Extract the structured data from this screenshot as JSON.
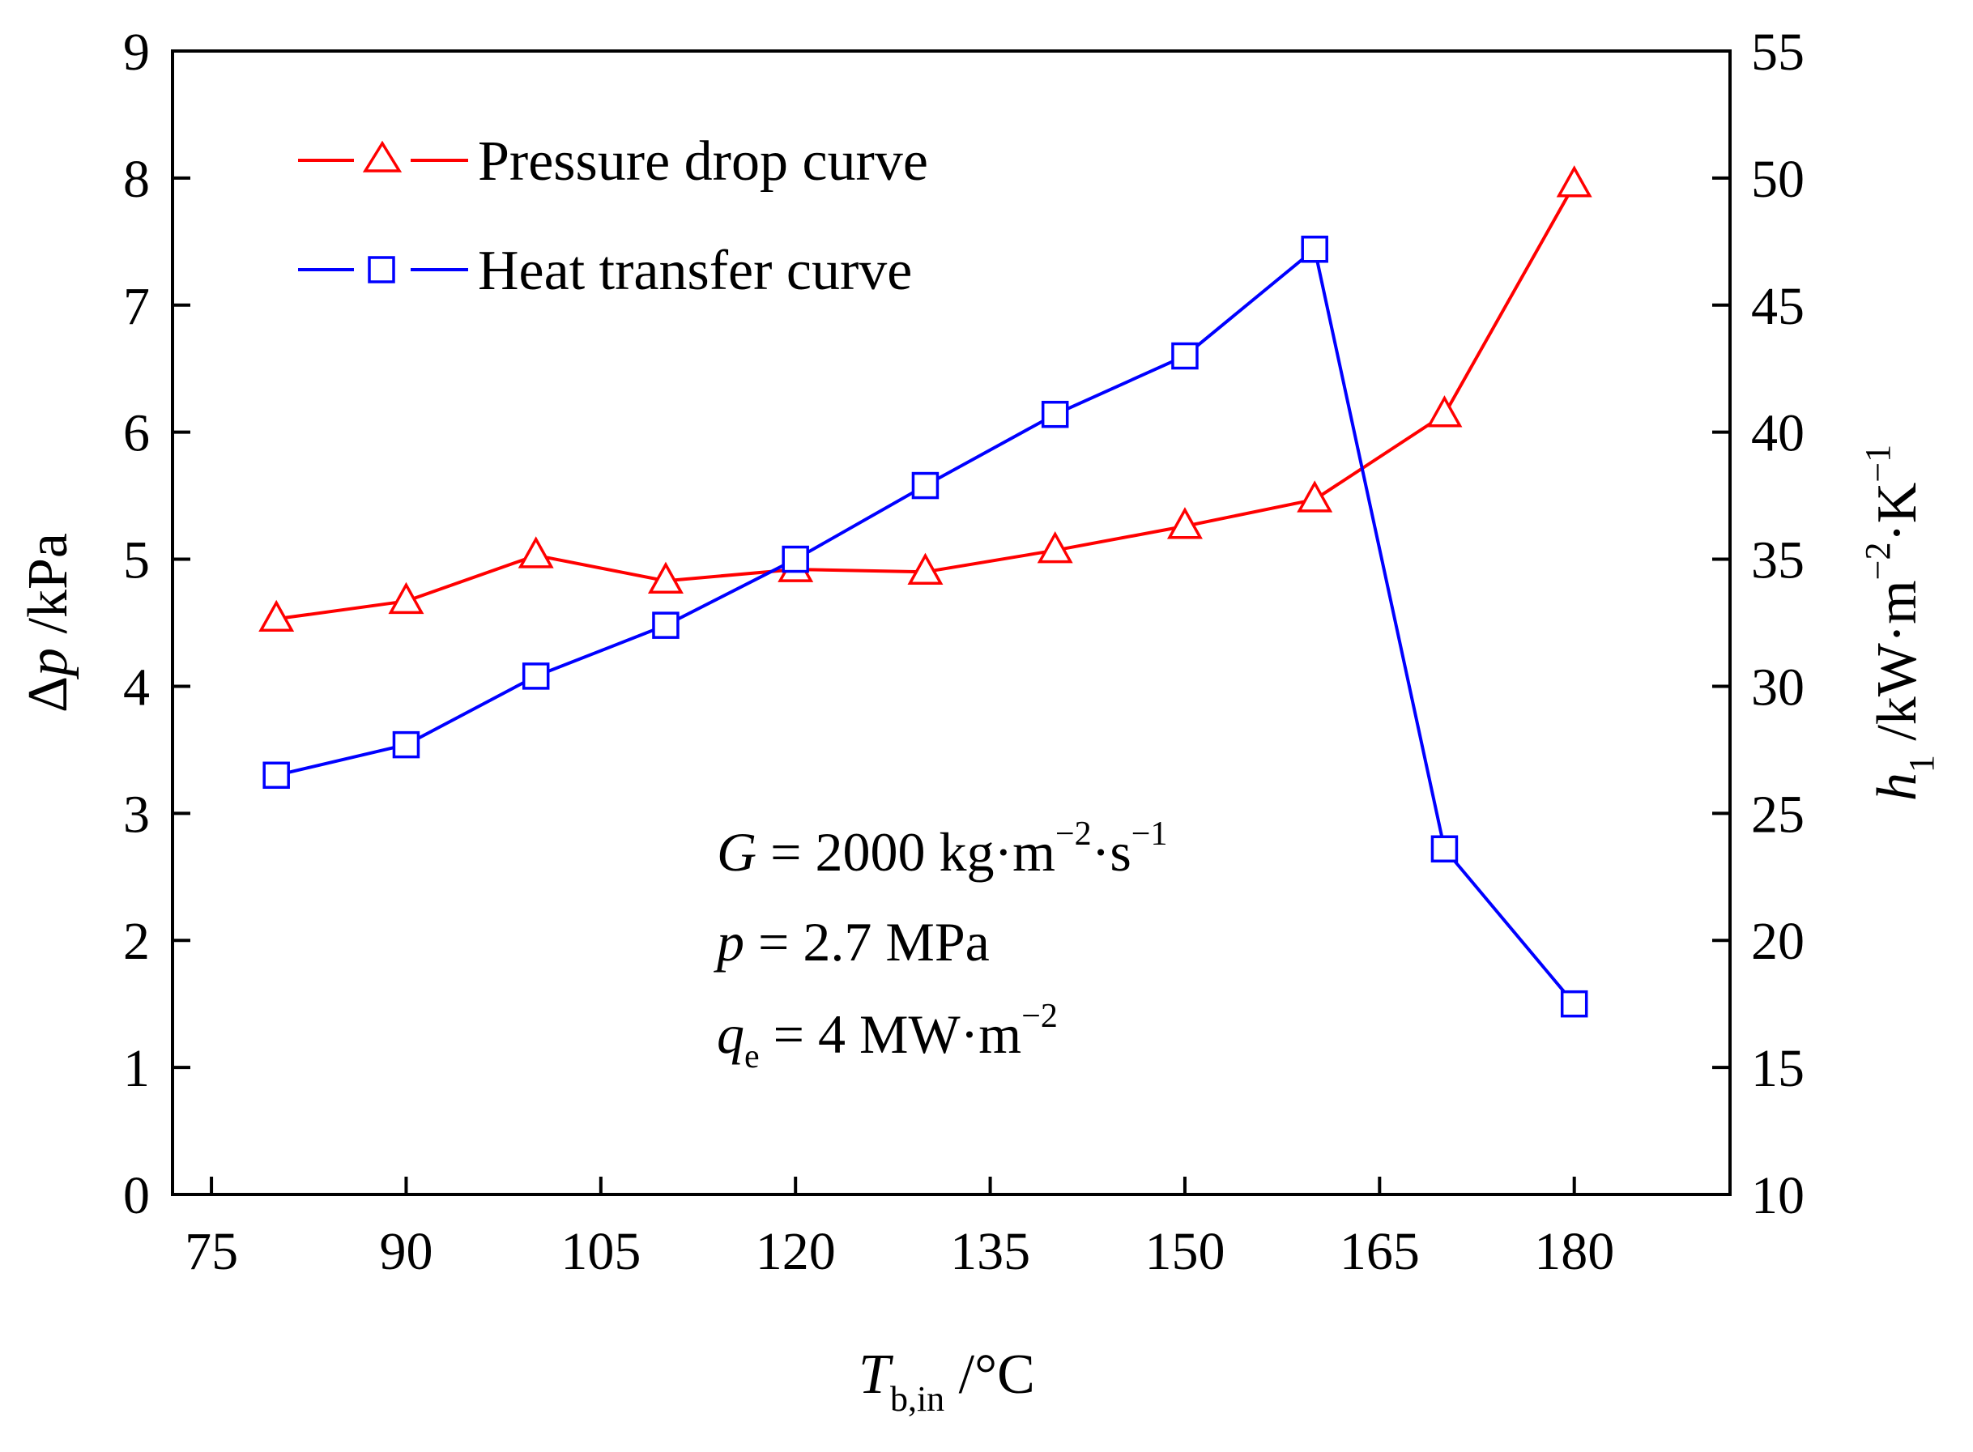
{
  "chart_data": {
    "type": "line",
    "x_axis": {
      "label_symbol": "T",
      "label_subscript": "b,in",
      "label_unit": " /°C",
      "range": [
        72,
        192
      ],
      "ticks": [
        75,
        90,
        105,
        120,
        135,
        150,
        165,
        180
      ]
    },
    "y_left": {
      "label_symbol": "Δ",
      "label_var": "p",
      "label_unit": " /kPa",
      "range": [
        0,
        9
      ],
      "ticks": [
        0,
        1,
        2,
        3,
        4,
        5,
        6,
        7,
        8,
        9
      ]
    },
    "y_right": {
      "label_symbol": "h",
      "label_subscript": "1",
      "label_unit_a": " /kW·m",
      "label_sup_a": "−2",
      "label_unit_b": "·K",
      "label_sup_b": "−1",
      "range": [
        10,
        55
      ],
      "ticks": [
        10,
        15,
        20,
        25,
        30,
        35,
        40,
        45,
        50,
        55
      ]
    },
    "series": [
      {
        "name": "Pressure drop curve",
        "axis": "left",
        "color": "#ff0000",
        "marker": "triangle",
        "x": [
          80,
          90,
          100,
          110,
          120,
          130,
          140,
          150,
          160,
          170,
          180
        ],
        "y": [
          4.53,
          4.67,
          5.03,
          4.83,
          4.92,
          4.9,
          5.07,
          5.26,
          5.47,
          6.14,
          7.95
        ]
      },
      {
        "name": "Heat transfer curve",
        "axis": "right",
        "color": "#0000ff",
        "marker": "square",
        "x": [
          80,
          90,
          100,
          110,
          120,
          130,
          140,
          150,
          160,
          170,
          180
        ],
        "y": [
          26.5,
          27.7,
          30.4,
          32.4,
          35.0,
          37.9,
          40.7,
          43.0,
          47.2,
          23.6,
          17.5
        ]
      }
    ],
    "legend_position": "top-left",
    "annotations": {
      "line1": {
        "var": "G",
        "text": " = 2000 kg·m",
        "sup1": "−2",
        "mid": "·s",
        "sup2": "−1"
      },
      "line2": {
        "var": "p",
        "text": " = 2.7 MPa"
      },
      "line3": {
        "var": "q",
        "sub": "e",
        "text": " = 4 MW·m",
        "sup": "−2"
      }
    }
  }
}
